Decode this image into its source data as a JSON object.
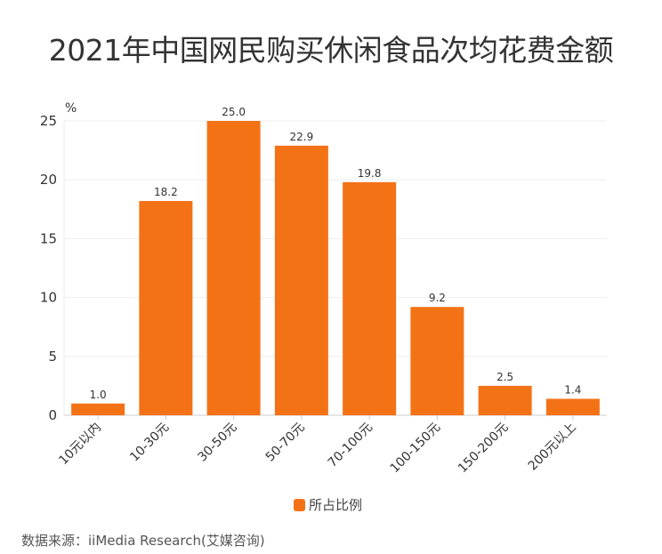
{
  "chart_data": {
    "type": "bar",
    "title": "2021年中国网民购买休闲食品次均花费金额",
    "categories": [
      "10元以内",
      "10-30元",
      "30-50元",
      "50-70元",
      "70-100元",
      "100-150元",
      "150-200元",
      "200元以上"
    ],
    "series": [
      {
        "name": "所占比例",
        "values": [
          1.0,
          18.2,
          25.0,
          22.9,
          19.8,
          9.2,
          2.5,
          1.4
        ],
        "color": "#f47216"
      }
    ],
    "ylabel": "%",
    "xlabel": "",
    "ylim": [
      0,
      25
    ],
    "yticks": [
      0,
      5,
      10,
      15,
      20,
      25
    ],
    "grid": true,
    "legend": "bottom-center",
    "data_labels": true
  },
  "source": "数据来源：iiMedia Research(艾媒咨询)"
}
